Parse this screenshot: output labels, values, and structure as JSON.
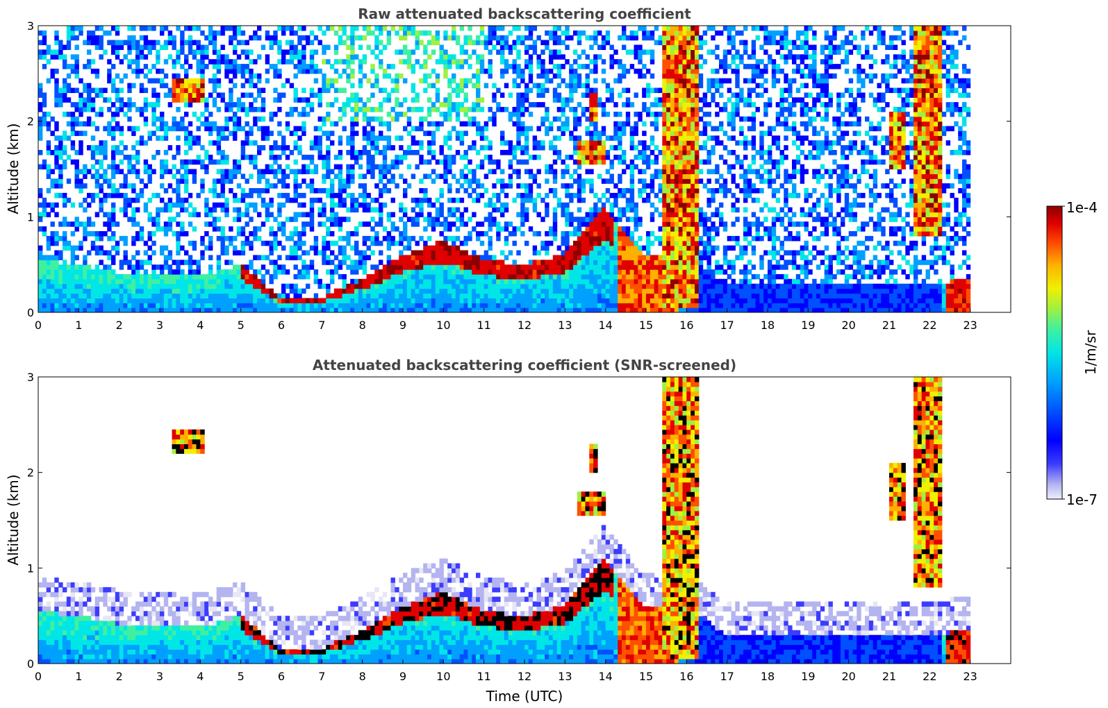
{
  "chart_data": [
    {
      "type": "heatmap",
      "title": "Raw attenuated backscattering coefficient",
      "xlabel": "",
      "ylabel": "Altitude (km)",
      "xlim": [
        0,
        24
      ],
      "ylim": [
        0,
        3
      ],
      "xticks": [
        "0",
        "1",
        "2",
        "3",
        "4",
        "5",
        "6",
        "7",
        "8",
        "9",
        "10",
        "11",
        "12",
        "13",
        "14",
        "15",
        "16",
        "17",
        "18",
        "19",
        "20",
        "21",
        "22",
        "23"
      ],
      "yticks": [
        "0",
        "1",
        "2",
        "3"
      ],
      "screened": false,
      "data_end_hour": 23,
      "boundary_layer_top_km": [
        {
          "t": 0,
          "z": 0.55
        },
        {
          "t": 1,
          "z": 0.5
        },
        {
          "t": 2,
          "z": 0.42
        },
        {
          "t": 3,
          "z": 0.38
        },
        {
          "t": 4,
          "z": 0.38
        },
        {
          "t": 5,
          "z": 0.5
        },
        {
          "t": 6,
          "z": 0.15
        },
        {
          "t": 7,
          "z": 0.16
        },
        {
          "t": 8,
          "z": 0.35
        },
        {
          "t": 9,
          "z": 0.6
        },
        {
          "t": 10,
          "z": 0.75
        },
        {
          "t": 11,
          "z": 0.55
        },
        {
          "t": 12,
          "z": 0.5
        },
        {
          "t": 13,
          "z": 0.6
        },
        {
          "t": 14,
          "z": 1.1
        },
        {
          "t": 15,
          "z": 0.6
        },
        {
          "t": 16,
          "z": 0.6
        },
        {
          "t": 17,
          "z": 0.3
        },
        {
          "t": 22,
          "z": 0.3
        },
        {
          "t": 23,
          "z": 0.35
        }
      ],
      "cloud_features": [
        {
          "t_start": 3.3,
          "t_end": 4.1,
          "z_bottom": 2.2,
          "z_top": 2.45
        },
        {
          "t_start": 13.3,
          "t_end": 14.0,
          "z_bottom": 1.55,
          "z_top": 1.8
        },
        {
          "t_start": 13.6,
          "t_end": 13.8,
          "z_bottom": 2.0,
          "z_top": 2.3
        },
        {
          "t_start": 15.4,
          "t_end": 16.3,
          "z_bottom": 0.05,
          "z_top": 3.0
        },
        {
          "t_start": 21.0,
          "t_end": 21.4,
          "z_bottom": 1.5,
          "z_top": 2.1
        },
        {
          "t_start": 21.6,
          "t_end": 22.3,
          "z_bottom": 0.8,
          "z_top": 3.0
        }
      ]
    },
    {
      "type": "heatmap",
      "title": "Attenuated backscattering coefficient (SNR-screened)",
      "xlabel": "Time (UTC)",
      "ylabel": "Altitude (km)",
      "xlim": [
        0,
        24
      ],
      "ylim": [
        0,
        3
      ],
      "xticks": [
        "0",
        "1",
        "2",
        "3",
        "4",
        "5",
        "6",
        "7",
        "8",
        "9",
        "10",
        "11",
        "12",
        "13",
        "14",
        "15",
        "16",
        "17",
        "18",
        "19",
        "20",
        "21",
        "22",
        "23"
      ],
      "yticks": [
        "0",
        "1",
        "2",
        "3"
      ],
      "screened": true,
      "data_end_hour": 23
    }
  ],
  "colorbar": {
    "label": "1/m/sr",
    "max_label": "1e-4",
    "min_label": "1e-7",
    "scale": "log",
    "range": [
      1e-07,
      0.0001
    ],
    "colormap": [
      "#e6e6f5",
      "#b4b4f0",
      "#3c3cff",
      "#0000ff",
      "#0050ff",
      "#00a0ff",
      "#00e6e6",
      "#40f0a0",
      "#a0f040",
      "#f0f000",
      "#ffb000",
      "#ff5000",
      "#e00000",
      "#8c0000"
    ]
  }
}
